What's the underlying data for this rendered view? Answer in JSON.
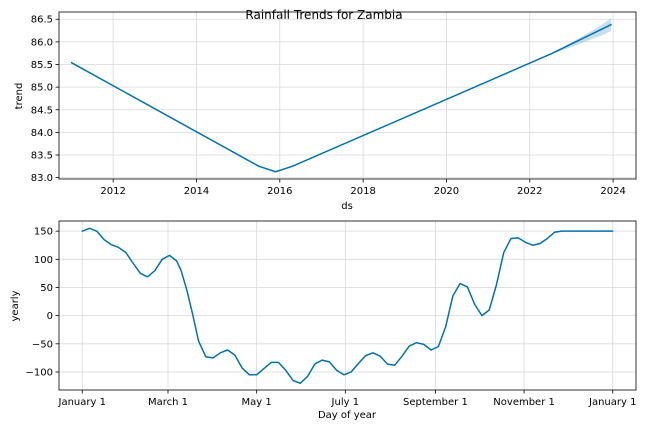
{
  "title": "Rainfall Trends for Zambia",
  "chart_data": [
    {
      "type": "line",
      "xlabel": "ds",
      "ylabel": "trend",
      "xlim": [
        2010.7,
        2024.55
      ],
      "ylim": [
        82.97,
        86.66
      ],
      "xticks": [
        2012,
        2014,
        2016,
        2018,
        2020,
        2022,
        2024
      ],
      "xtick_labels": [
        "2012",
        "2014",
        "2016",
        "2018",
        "2020",
        "2022",
        "2024"
      ],
      "yticks": [
        83.0,
        83.5,
        84.0,
        84.5,
        85.0,
        85.5,
        86.0,
        86.5
      ],
      "ytick_labels": [
        "83.0",
        "83.5",
        "84.0",
        "84.5",
        "85.0",
        "85.5",
        "86.0",
        "86.5"
      ],
      "grid": true,
      "series": [
        {
          "color": "#0072B2",
          "x": [
            2011.0,
            2015.5,
            2015.9,
            2016.3,
            2022.5,
            2023.95
          ],
          "y": [
            85.54,
            83.25,
            83.13,
            83.25,
            85.73,
            86.38
          ]
        }
      ],
      "uncertainty_band": {
        "color": "#0072B2",
        "x": [
          2022.5,
          2022.8,
          2023.1,
          2023.4,
          2023.7,
          2023.95
        ],
        "lower": [
          85.73,
          85.82,
          85.92,
          86.03,
          86.13,
          86.24
        ],
        "upper": [
          85.73,
          85.88,
          86.04,
          86.2,
          86.36,
          86.52
        ]
      }
    },
    {
      "type": "line",
      "xlabel": "Day of year",
      "ylabel": "yearly",
      "xlim": [
        -16,
        381
      ],
      "ylim": [
        -132,
        168
      ],
      "xticks": [
        0,
        59,
        120,
        181,
        243,
        304,
        365
      ],
      "xtick_labels": [
        "January 1",
        "March 1",
        "May 1",
        "July 1",
        "September 1",
        "November 1",
        "January 1"
      ],
      "yticks": [
        -100,
        -50,
        0,
        50,
        100,
        150
      ],
      "ytick_labels": [
        "−100",
        "−50",
        "0",
        "50",
        "100",
        "150"
      ],
      "grid": true,
      "series": [
        {
          "color": "#0072B2",
          "x": [
            0,
            5,
            10,
            15,
            20,
            25,
            30,
            35,
            40,
            45,
            50,
            55,
            60,
            65,
            68,
            72,
            76,
            80,
            85,
            90,
            95,
            100,
            105,
            110,
            115,
            120,
            125,
            130,
            135,
            140,
            145,
            150,
            155,
            160,
            165,
            170,
            175,
            180,
            185,
            190,
            195,
            200,
            205,
            210,
            215,
            220,
            225,
            230,
            235,
            240,
            245,
            250,
            255,
            260,
            265,
            270,
            275,
            280,
            285,
            290,
            295,
            300,
            305,
            310,
            315,
            320,
            325,
            330,
            335,
            340,
            345,
            350,
            355,
            360,
            365
          ],
          "y": [
            150,
            155,
            150,
            135,
            126,
            121,
            112,
            93,
            75,
            69,
            80,
            100,
            107,
            97,
            80,
            45,
            2,
            -45,
            -73,
            -75,
            -66,
            -61,
            -70,
            -93,
            -105,
            -105,
            -94,
            -83,
            -83,
            -97,
            -115,
            -120,
            -108,
            -86,
            -79,
            -82,
            -97,
            -105,
            -100,
            -85,
            -71,
            -66,
            -72,
            -86,
            -88,
            -72,
            -54,
            -48,
            -51,
            -61,
            -55,
            -20,
            35,
            57,
            51,
            20,
            0,
            10,
            55,
            112,
            137,
            138,
            130,
            125,
            128,
            137,
            148,
            150,
            150,
            150,
            150,
            150,
            150,
            150,
            150
          ]
        }
      ]
    }
  ]
}
